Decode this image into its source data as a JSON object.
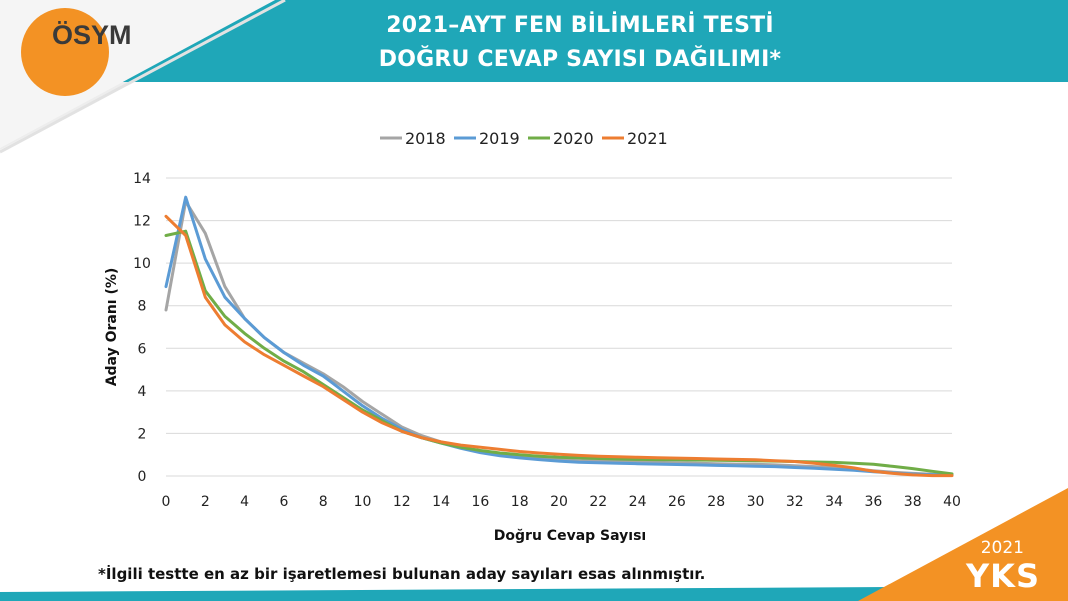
{
  "header": {
    "logo_text": "ÖSYM",
    "title_line1": "2021–AYT FEN BİLİMLERİ TESTİ",
    "title_line2": "DOĞRU CEVAP SAYISI DAĞILIMI*"
  },
  "footer": {
    "note": "*İlgili testte en az bir işaretlemesi bulunan aday sayıları esas alınmıştır.",
    "corner_year": "2021",
    "corner_brand": "YKS"
  },
  "colors": {
    "teal": "#1fa7b8",
    "orange": "#f39224",
    "s2018": "#a5a5a5",
    "s2019": "#5b9bd5",
    "s2020": "#70ad47",
    "s2021": "#ed7d31"
  },
  "chart_data": {
    "type": "line",
    "xlabel": "Doğru Cevap Sayısı",
    "ylabel": "Aday Oranı (%)",
    "xlim": [
      0,
      40
    ],
    "ylim": [
      0,
      14
    ],
    "x_ticks": [
      0,
      2,
      4,
      6,
      8,
      10,
      12,
      14,
      16,
      18,
      20,
      22,
      24,
      26,
      28,
      30,
      32,
      34,
      36,
      38,
      40
    ],
    "y_ticks": [
      0,
      2,
      4,
      6,
      8,
      10,
      12,
      14
    ],
    "grid": true,
    "legend_position": "top",
    "x": [
      0,
      1,
      2,
      3,
      4,
      5,
      6,
      7,
      8,
      9,
      10,
      11,
      12,
      13,
      14,
      15,
      16,
      17,
      18,
      19,
      20,
      21,
      22,
      23,
      24,
      25,
      26,
      27,
      28,
      29,
      30,
      31,
      32,
      33,
      34,
      35,
      36,
      37,
      38,
      39,
      40
    ],
    "series": [
      {
        "name": "2018",
        "color": "#a5a5a5",
        "values": [
          7.8,
          12.9,
          11.4,
          8.9,
          7.4,
          6.5,
          5.8,
          5.3,
          4.8,
          4.2,
          3.5,
          2.9,
          2.3,
          1.9,
          1.6,
          1.35,
          1.15,
          1.0,
          0.9,
          0.82,
          0.76,
          0.72,
          0.7,
          0.68,
          0.66,
          0.64,
          0.62,
          0.6,
          0.58,
          0.56,
          0.55,
          0.52,
          0.48,
          0.44,
          0.4,
          0.34,
          0.25,
          0.18,
          0.12,
          0.08,
          0.05
        ]
      },
      {
        "name": "2019",
        "color": "#5b9bd5",
        "values": [
          8.9,
          13.1,
          10.2,
          8.4,
          7.4,
          6.5,
          5.8,
          5.2,
          4.7,
          4.0,
          3.3,
          2.7,
          2.2,
          1.8,
          1.55,
          1.3,
          1.1,
          0.95,
          0.85,
          0.77,
          0.7,
          0.65,
          0.62,
          0.6,
          0.58,
          0.56,
          0.54,
          0.52,
          0.5,
          0.48,
          0.46,
          0.44,
          0.4,
          0.36,
          0.32,
          0.27,
          0.2,
          0.14,
          0.09,
          0.06,
          0.04
        ]
      },
      {
        "name": "2020",
        "color": "#70ad47",
        "values": [
          11.3,
          11.5,
          8.7,
          7.5,
          6.7,
          6.0,
          5.4,
          4.9,
          4.3,
          3.7,
          3.1,
          2.6,
          2.1,
          1.8,
          1.55,
          1.35,
          1.2,
          1.08,
          1.0,
          0.93,
          0.88,
          0.85,
          0.82,
          0.8,
          0.78,
          0.77,
          0.76,
          0.75,
          0.74,
          0.73,
          0.72,
          0.7,
          0.68,
          0.66,
          0.64,
          0.6,
          0.55,
          0.45,
          0.35,
          0.22,
          0.1
        ]
      },
      {
        "name": "2021",
        "color": "#ed7d31",
        "values": [
          12.2,
          11.3,
          8.4,
          7.1,
          6.3,
          5.7,
          5.2,
          4.7,
          4.2,
          3.6,
          3.0,
          2.5,
          2.1,
          1.8,
          1.6,
          1.45,
          1.35,
          1.25,
          1.15,
          1.08,
          1.02,
          0.97,
          0.93,
          0.9,
          0.88,
          0.86,
          0.84,
          0.82,
          0.8,
          0.78,
          0.76,
          0.72,
          0.68,
          0.6,
          0.5,
          0.38,
          0.22,
          0.12,
          0.05,
          0.02,
          0.02
        ]
      }
    ]
  }
}
